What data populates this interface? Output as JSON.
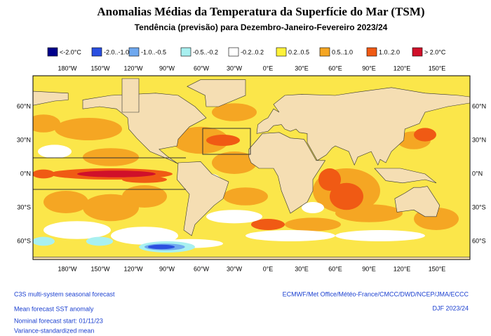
{
  "title": "Anomalias Médias da Temperatura da Superfície do Mar (TSM)",
  "subtitle": "Tendência (previsão) para Dezembro-Janeiro-Fevereiro 2023/24",
  "legend": [
    {
      "label": "<-2.0°C",
      "color": "#00008b"
    },
    {
      "label": "-2.0..-1.0",
      "color": "#2a4fe0"
    },
    {
      "label": "-1.0..-0.5",
      "color": "#6fa8ef"
    },
    {
      "label": "-0.5..-0.2",
      "color": "#a8f0f0"
    },
    {
      "label": "-0.2..0.2",
      "color": "#ffffff"
    },
    {
      "label": "0.2..0.5",
      "color": "#fff23a"
    },
    {
      "label": "0.5..1.0",
      "color": "#f5a623"
    },
    {
      "label": "1.0..2.0",
      "color": "#f05a14"
    },
    {
      "label": "> 2.0°C",
      "color": "#d0102a"
    }
  ],
  "lon_labels": [
    "180°W",
    "150°W",
    "120°W",
    "90°W",
    "60°W",
    "30°W",
    "0°E",
    "30°E",
    "60°E",
    "90°E",
    "120°E",
    "150°E"
  ],
  "lat_labels": [
    "60°N",
    "30°N",
    "0°N",
    "30°S",
    "60°S"
  ],
  "footer_left": [
    "C3S multi-system seasonal forecast",
    "Mean forecast SST anomaly",
    "Nominal forecast start: 01/11/23",
    "Variance-standardized mean"
  ],
  "footer_right": [
    "ECMWF/Met Office/Météo-France/CMCC/DWD/NCEP/JMA/ECCC",
    "DJF 2023/24"
  ]
}
